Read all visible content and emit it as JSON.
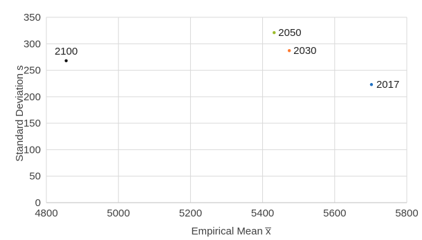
{
  "chart_data": {
    "type": "scatter",
    "xlabel": "Empirical Mean x̅",
    "ylabel": "Standard Deviation s",
    "xlim": [
      4800,
      5800
    ],
    "ylim": [
      0,
      350
    ],
    "xticks": [
      4800,
      5000,
      5200,
      5400,
      5600,
      5800
    ],
    "yticks": [
      0,
      50,
      100,
      150,
      200,
      250,
      300,
      350
    ],
    "grid": true,
    "points": [
      {
        "label": "2100",
        "x": 4855,
        "y": 268,
        "color": "#111111"
      },
      {
        "label": "2050",
        "x": 5432,
        "y": 321,
        "color": "#9bbb2a"
      },
      {
        "label": "2030",
        "x": 5474,
        "y": 287,
        "color": "#ff7a2f"
      },
      {
        "label": "2017",
        "x": 5702,
        "y": 223,
        "color": "#1f6fc1"
      }
    ]
  },
  "colors": {
    "grid": "#d9d9d9",
    "axis": "#bfbfbf",
    "text": "#404040"
  }
}
